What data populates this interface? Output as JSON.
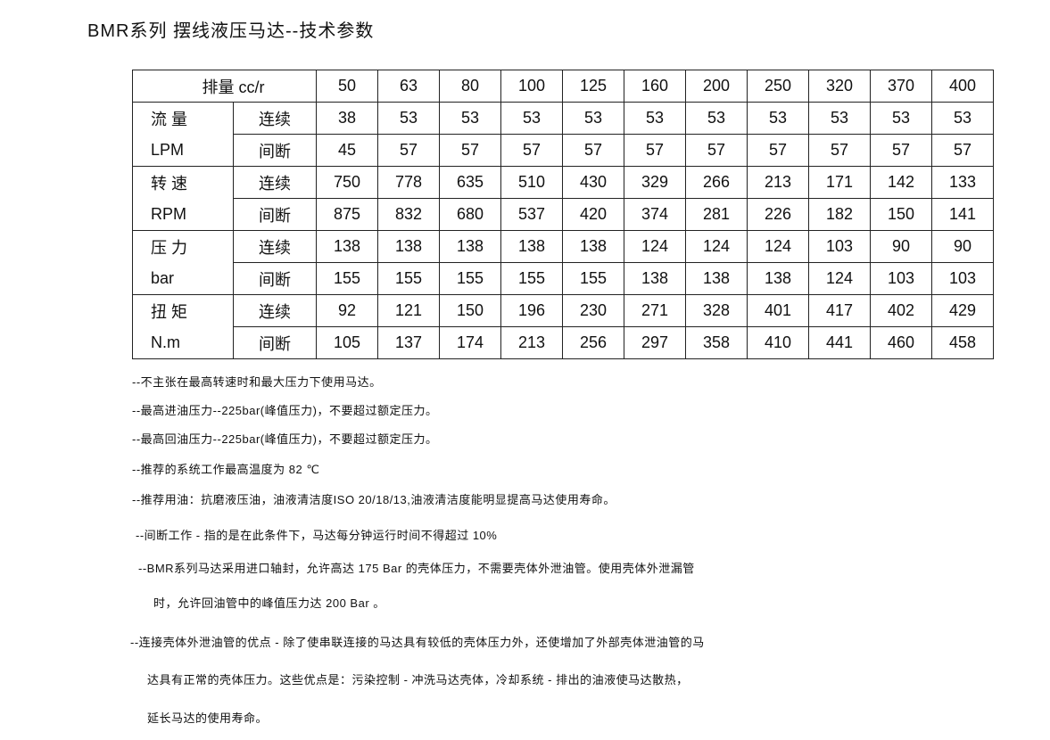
{
  "title": "BMR系列 摆线液压马达--技术参数",
  "table": {
    "header_label": "排量 cc/r",
    "displacements": [
      "50",
      "63",
      "80",
      "100",
      "125",
      "160",
      "200",
      "250",
      "320",
      "370",
      "400"
    ],
    "groups": [
      {
        "name": "流 量",
        "unit": "LPM",
        "rows": [
          {
            "mode": "连续",
            "values": [
              "38",
              "53",
              "53",
              "53",
              "53",
              "53",
              "53",
              "53",
              "53",
              "53",
              "53"
            ]
          },
          {
            "mode": "间断",
            "values": [
              "45",
              "57",
              "57",
              "57",
              "57",
              "57",
              "57",
              "57",
              "57",
              "57",
              "57"
            ]
          }
        ]
      },
      {
        "name": "转 速",
        "unit": "RPM",
        "rows": [
          {
            "mode": "连续",
            "values": [
              "750",
              "778",
              "635",
              "510",
              "430",
              "329",
              "266",
              "213",
              "171",
              "142",
              "133"
            ]
          },
          {
            "mode": "间断",
            "values": [
              "875",
              "832",
              "680",
              "537",
              "420",
              "374",
              "281",
              "226",
              "182",
              "150",
              "141"
            ]
          }
        ]
      },
      {
        "name": "压 力",
        "unit": "bar",
        "rows": [
          {
            "mode": "连续",
            "values": [
              "138",
              "138",
              "138",
              "138",
              "138",
              "124",
              "124",
              "124",
              "103",
              "90",
              "90"
            ]
          },
          {
            "mode": "间断",
            "values": [
              "155",
              "155",
              "155",
              "155",
              "155",
              "138",
              "138",
              "138",
              "124",
              "103",
              "103"
            ]
          }
        ]
      },
      {
        "name": "扭 矩",
        "unit": "N.m",
        "rows": [
          {
            "mode": "连续",
            "values": [
              "92",
              "121",
              "150",
              "196",
              "230",
              "271",
              "328",
              "401",
              "417",
              "402",
              "429"
            ]
          },
          {
            "mode": "间断",
            "values": [
              "105",
              "137",
              "174",
              "213",
              "256",
              "297",
              "358",
              "410",
              "441",
              "460",
              "458"
            ]
          }
        ]
      }
    ]
  },
  "notes": [
    "--不主张在最高转速时和最大压力下使用马达。",
    "--最高进油压力--225bar(峰值压力)，不要超过额定压力。",
    "--最高回油压力--225bar(峰值压力)，不要超过额定压力。",
    "--推荐的系统工作最高温度为 82 ℃",
    "--推荐用油：抗磨液压油，油液清洁度ISO 20/18/13,油液清洁度能明显提高马达使用寿命。",
    "--间断工作 - 指的是在此条件下，马达每分钟运行时间不得超过 10%",
    "--BMR系列马达采用进口轴封，允许高达 175 Bar 的壳体压力，不需要壳体外泄油管。使用壳体外泄漏管",
    "时，允许回油管中的峰值压力达 200 Bar 。",
    "--连接壳体外泄油管的优点 - 除了使串联连接的马达具有较低的壳体压力外，还使增加了外部壳体泄油管的马",
    "达具有正常的壳体压力。这些优点是：污染控制 - 冲洗马达壳体，冷却系统 - 排出的油液使马达散热，",
    "延长马达的使用寿命。"
  ]
}
